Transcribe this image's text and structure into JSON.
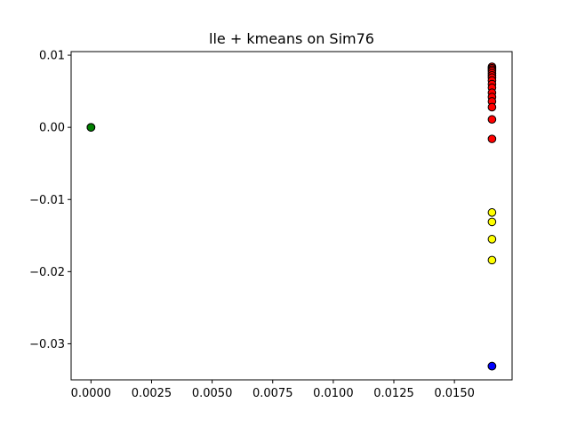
{
  "chart_data": {
    "type": "scatter",
    "title": "lle + kmeans on Sim76",
    "xlabel": "",
    "ylabel": "",
    "xlim": [
      -0.00082,
      0.01738
    ],
    "ylim": [
      -0.035,
      0.0105
    ],
    "xticks": [
      0.0,
      0.0025,
      0.005,
      0.0075,
      0.01,
      0.0125,
      0.015
    ],
    "xtick_labels": [
      "0.0000",
      "0.0025",
      "0.0050",
      "0.0075",
      "0.0100",
      "0.0125",
      "0.0150"
    ],
    "yticks": [
      0.01,
      0.0,
      -0.01,
      -0.02,
      -0.03
    ],
    "ytick_labels": [
      "0.01",
      "0.00",
      "−0.01",
      "−0.02",
      "−0.03"
    ],
    "grid": false,
    "series": [
      {
        "color": "#008000",
        "points": [
          [
            0.0,
            0.0
          ],
          [
            0.0,
            0.0
          ],
          [
            0.0,
            0.0
          ]
        ]
      },
      {
        "color": "#ff0000",
        "points": [
          [
            0.01655,
            0.0084
          ],
          [
            0.01655,
            0.0082
          ],
          [
            0.01655,
            0.008
          ],
          [
            0.01655,
            0.0078
          ],
          [
            0.01655,
            0.0075
          ],
          [
            0.01655,
            0.0072
          ],
          [
            0.01655,
            0.0069
          ],
          [
            0.01655,
            0.0065
          ],
          [
            0.01655,
            0.006
          ],
          [
            0.01655,
            0.0055
          ],
          [
            0.01655,
            0.0048
          ],
          [
            0.01655,
            0.0042
          ],
          [
            0.01655,
            0.0036
          ],
          [
            0.01655,
            0.0028
          ],
          [
            0.01655,
            0.0011
          ],
          [
            0.01655,
            -0.0016
          ]
        ]
      },
      {
        "color": "#ffff00",
        "points": [
          [
            0.01655,
            -0.0118
          ],
          [
            0.01655,
            -0.0131
          ],
          [
            0.01655,
            -0.0155
          ],
          [
            0.01655,
            -0.0184
          ]
        ]
      },
      {
        "color": "#0000ff",
        "points": [
          [
            0.01655,
            -0.0331
          ],
          [
            0.01655,
            -0.0331
          ]
        ]
      }
    ]
  }
}
